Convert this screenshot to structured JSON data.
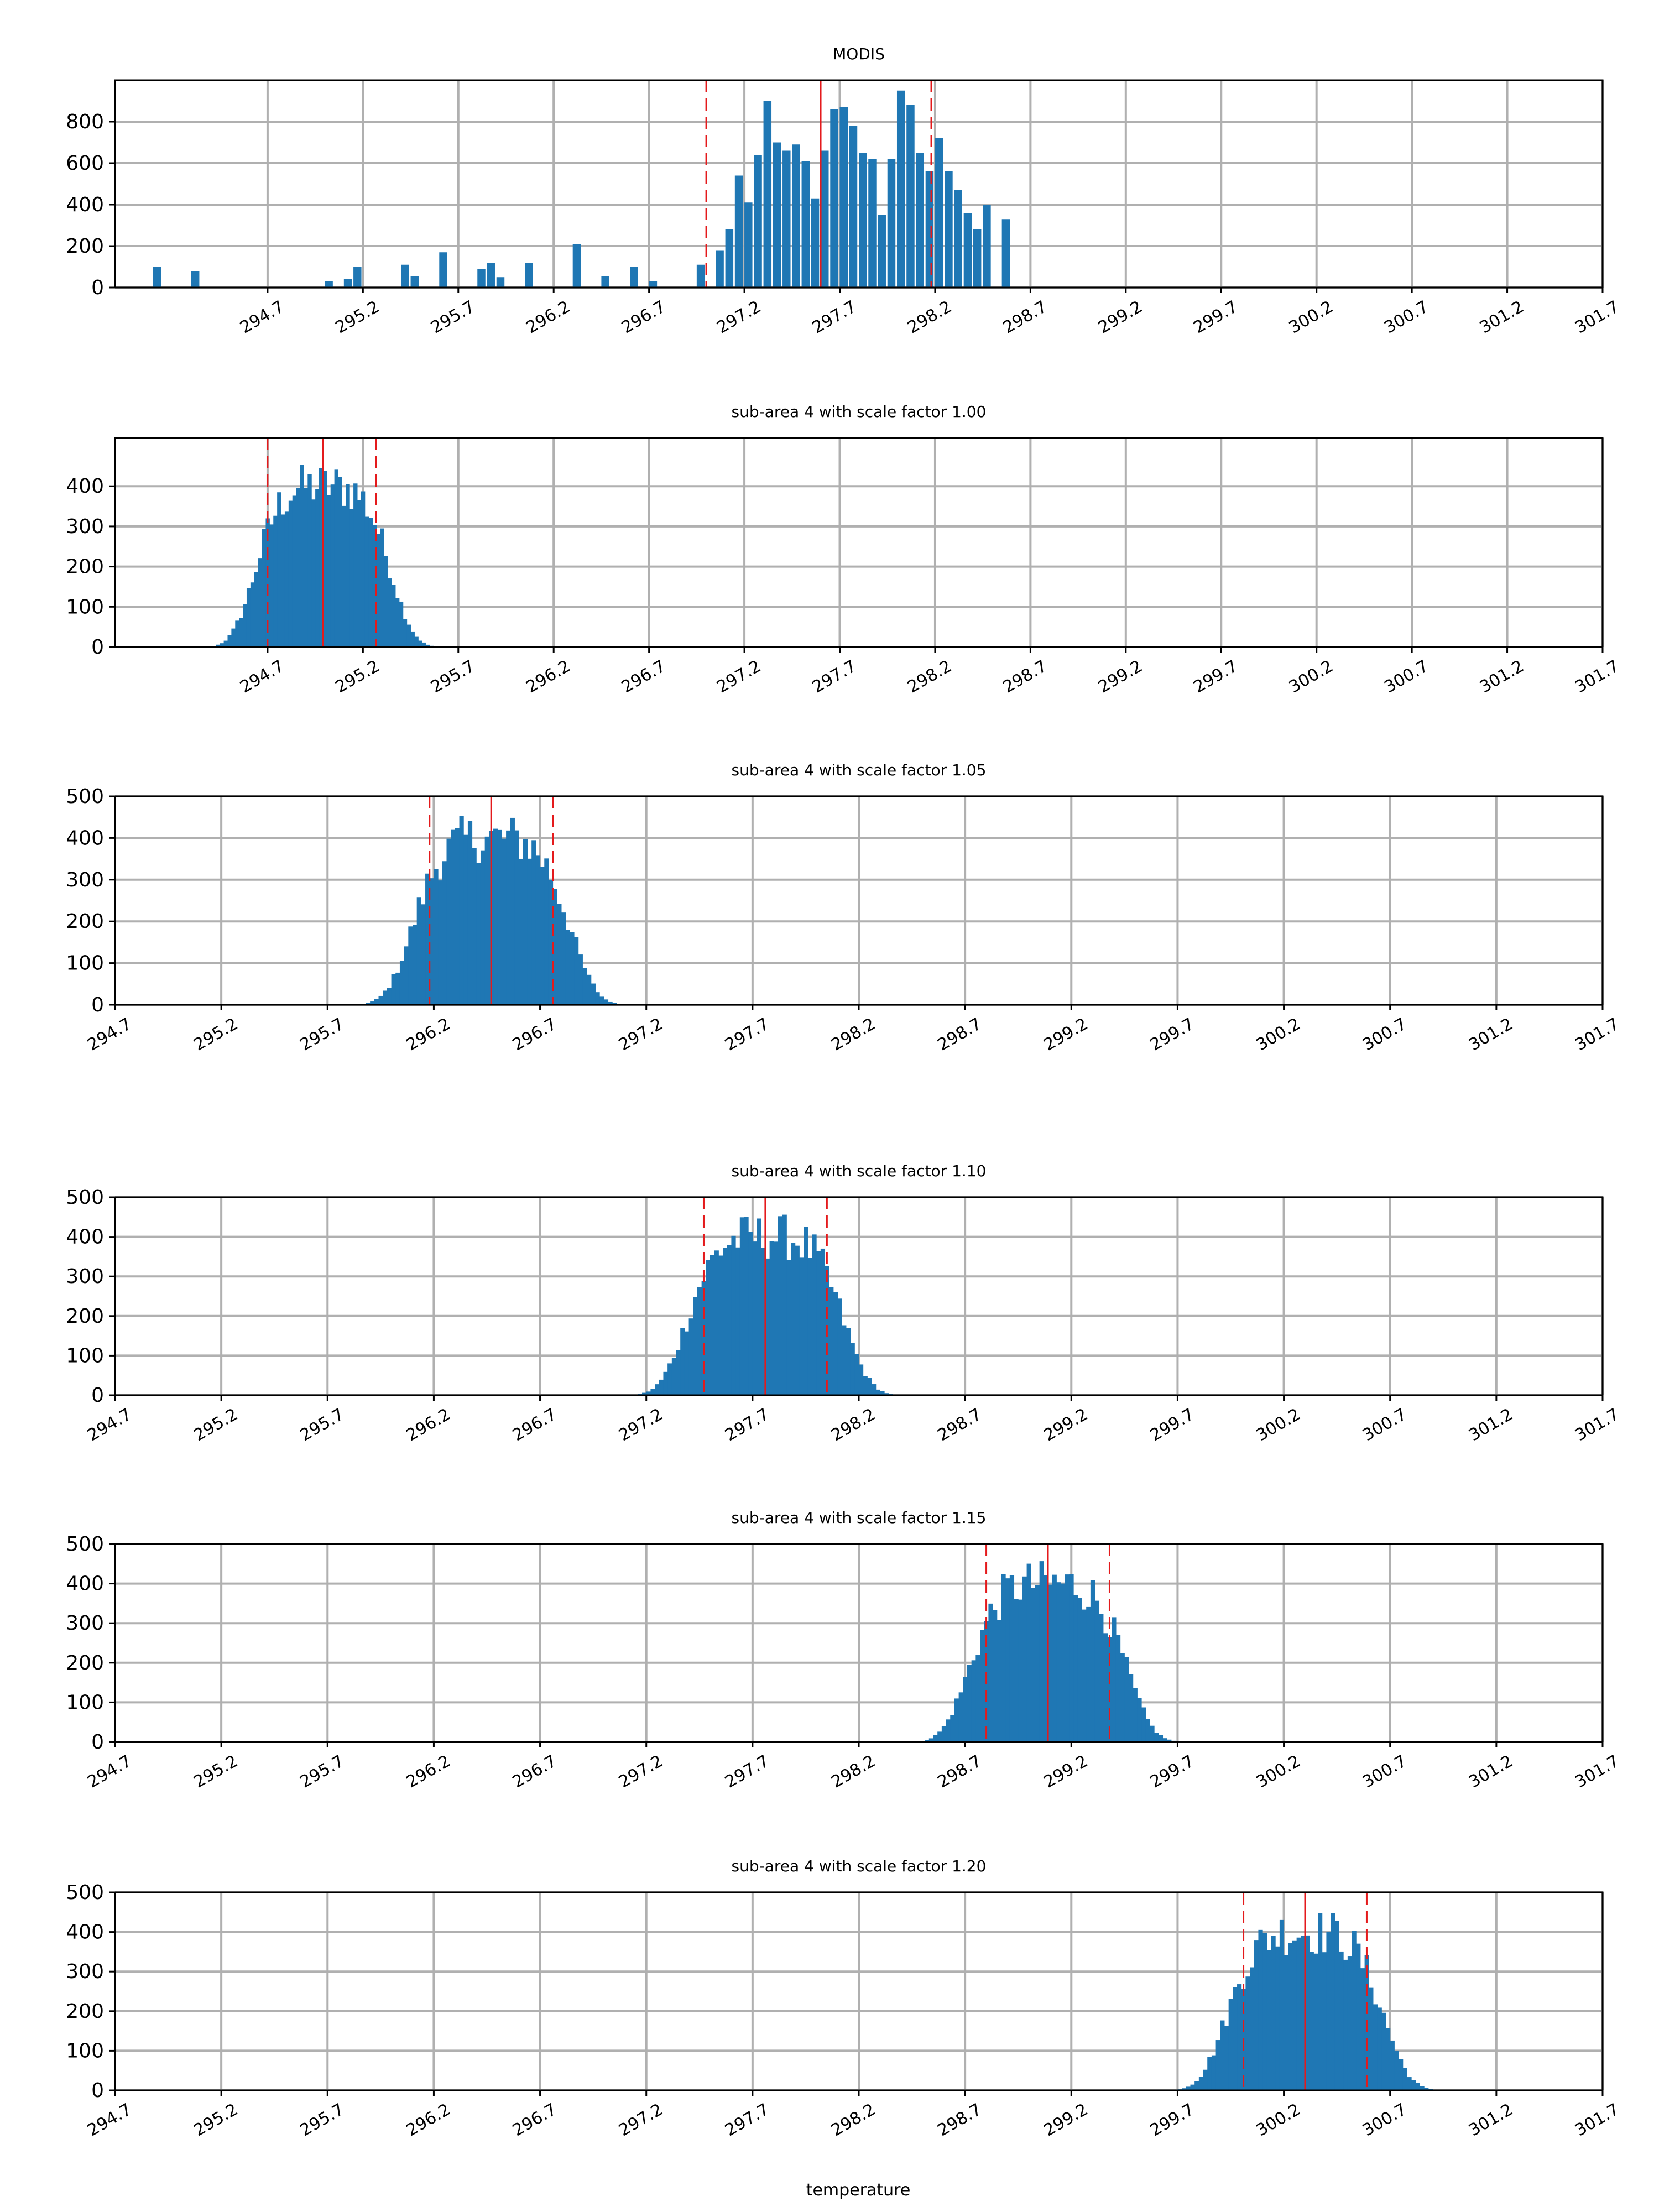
{
  "figure": {
    "xlabel": "temperature"
  },
  "chart_data": [
    {
      "type": "histogram",
      "title": "MODIS",
      "xlim": [
        293.9,
        301.7
      ],
      "ylim": [
        0,
        1000
      ],
      "yticks": [
        0,
        200,
        400,
        600,
        800
      ],
      "xticks": [
        294.7,
        295.2,
        295.7,
        296.2,
        296.7,
        297.2,
        297.7,
        298.2,
        298.7,
        299.2,
        299.7,
        300.2,
        300.7,
        301.2,
        301.7
      ],
      "xtick_labels": [
        "294.7",
        "295.2",
        "295.7",
        "296.2",
        "296.7",
        "297.2",
        "297.7",
        "298.2",
        "298.7",
        "299.2",
        "299.7",
        "300.2",
        "300.7",
        "301.2",
        "301.7"
      ],
      "bin_width": 0.042,
      "bins": [
        [
          294.1,
          100
        ],
        [
          294.3,
          80
        ],
        [
          295.0,
          30
        ],
        [
          295.1,
          40
        ],
        [
          295.15,
          100
        ],
        [
          295.4,
          110
        ],
        [
          295.45,
          55
        ],
        [
          295.6,
          170
        ],
        [
          295.8,
          90
        ],
        [
          295.85,
          120
        ],
        [
          295.9,
          50
        ],
        [
          296.05,
          120
        ],
        [
          296.3,
          210
        ],
        [
          296.45,
          55
        ],
        [
          296.6,
          100
        ],
        [
          296.7,
          30
        ],
        [
          296.95,
          110
        ],
        [
          297.05,
          180
        ],
        [
          297.1,
          280
        ],
        [
          297.15,
          540
        ],
        [
          297.2,
          410
        ],
        [
          297.25,
          640
        ],
        [
          297.3,
          900
        ],
        [
          297.35,
          700
        ],
        [
          297.4,
          660
        ],
        [
          297.45,
          690
        ],
        [
          297.5,
          610
        ],
        [
          297.55,
          430
        ],
        [
          297.6,
          660
        ],
        [
          297.65,
          860
        ],
        [
          297.7,
          870
        ],
        [
          297.75,
          780
        ],
        [
          297.8,
          650
        ],
        [
          297.85,
          620
        ],
        [
          297.9,
          350
        ],
        [
          297.95,
          620
        ],
        [
          298.0,
          950
        ],
        [
          298.05,
          880
        ],
        [
          298.1,
          650
        ],
        [
          298.15,
          560
        ],
        [
          298.2,
          720
        ],
        [
          298.25,
          560
        ],
        [
          298.3,
          470
        ],
        [
          298.35,
          360
        ],
        [
          298.4,
          280
        ],
        [
          298.45,
          400
        ],
        [
          298.55,
          330
        ]
      ],
      "mean": 297.6,
      "mean_minus_std": 297.0,
      "mean_plus_std": 298.18
    },
    {
      "type": "histogram",
      "title": "sub-area 4 with scale factor 1.00",
      "xlim": [
        293.9,
        301.7
      ],
      "ylim": [
        0,
        520
      ],
      "yticks": [
        0,
        100,
        200,
        300,
        400
      ],
      "xticks": [
        294.7,
        295.2,
        295.7,
        296.2,
        296.7,
        297.2,
        297.7,
        298.2,
        298.7,
        299.2,
        299.7,
        300.2,
        300.7,
        301.2,
        301.7
      ],
      "xtick_labels": [
        "294.7",
        "295.2",
        "295.7",
        "296.2",
        "296.7",
        "297.2",
        "297.7",
        "298.2",
        "298.7",
        "299.2",
        "299.7",
        "300.2",
        "300.7",
        "301.2",
        "301.7"
      ],
      "mean": 294.99,
      "std": 0.28,
      "peak": 400,
      "bin_width": 0.02,
      "range": [
        294.15,
        295.8
      ],
      "mean_minus_std": 294.7,
      "mean_plus_std": 295.27
    },
    {
      "type": "histogram",
      "title": "sub-area 4 with scale factor 1.05",
      "xlim": [
        294.7,
        301.7
      ],
      "ylim": [
        0,
        500
      ],
      "yticks": [
        0,
        100,
        200,
        300,
        400,
        500
      ],
      "xticks": [
        294.7,
        295.2,
        295.7,
        296.2,
        296.7,
        297.2,
        297.7,
        298.2,
        298.7,
        299.2,
        299.7,
        300.2,
        300.7,
        301.2,
        301.7
      ],
      "xtick_labels": [
        "294.7",
        "295.2",
        "295.7",
        "296.2",
        "296.7",
        "297.2",
        "297.7",
        "298.2",
        "298.7",
        "299.2",
        "299.7",
        "300.2",
        "300.7",
        "301.2",
        "301.7"
      ],
      "mean": 296.47,
      "std": 0.29,
      "peak": 400,
      "bin_width": 0.02,
      "range": [
        295.6,
        297.3
      ],
      "mean_minus_std": 296.18,
      "mean_plus_std": 296.76
    },
    {
      "type": "histogram",
      "title": "sub-area 4 with scale factor 1.10",
      "xlim": [
        294.7,
        301.7
      ],
      "ylim": [
        0,
        500
      ],
      "yticks": [
        0,
        100,
        200,
        300,
        400,
        500
      ],
      "xticks": [
        294.7,
        295.2,
        295.7,
        296.2,
        296.7,
        297.2,
        297.7,
        298.2,
        298.7,
        299.2,
        299.7,
        300.2,
        300.7,
        301.2,
        301.7
      ],
      "xtick_labels": [
        "294.7",
        "295.2",
        "295.7",
        "296.2",
        "296.7",
        "297.2",
        "297.7",
        "298.2",
        "298.7",
        "299.2",
        "299.7",
        "300.2",
        "300.7",
        "301.2",
        "301.7"
      ],
      "mean": 297.76,
      "std": 0.29,
      "peak": 400,
      "bin_width": 0.02,
      "range": [
        296.9,
        298.7
      ],
      "mean_minus_std": 297.47,
      "mean_plus_std": 298.05
    },
    {
      "type": "histogram",
      "title": "sub-area 4 with scale factor 1.15",
      "xlim": [
        294.7,
        301.7
      ],
      "ylim": [
        0,
        500
      ],
      "yticks": [
        0,
        100,
        200,
        300,
        400,
        500
      ],
      "xticks": [
        294.7,
        295.2,
        295.7,
        296.2,
        296.7,
        297.2,
        297.7,
        298.2,
        298.7,
        299.2,
        299.7,
        300.2,
        300.7,
        301.2,
        301.7
      ],
      "xtick_labels": [
        "294.7",
        "295.2",
        "295.7",
        "296.2",
        "296.7",
        "297.2",
        "297.7",
        "298.2",
        "298.7",
        "299.2",
        "299.7",
        "300.2",
        "300.7",
        "301.2",
        "301.7"
      ],
      "mean": 299.09,
      "std": 0.29,
      "peak": 400,
      "bin_width": 0.02,
      "range": [
        298.25,
        300.0
      ],
      "mean_minus_std": 298.8,
      "mean_plus_std": 299.38
    },
    {
      "type": "histogram",
      "title": "sub-area 4 with scale factor 1.20",
      "xlim": [
        294.7,
        301.7
      ],
      "ylim": [
        0,
        500
      ],
      "yticks": [
        0,
        100,
        200,
        300,
        400,
        500
      ],
      "xticks": [
        294.7,
        295.2,
        295.7,
        296.2,
        296.7,
        297.2,
        297.7,
        298.2,
        298.7,
        299.2,
        299.7,
        300.2,
        300.7,
        301.2,
        301.7
      ],
      "xtick_labels": [
        "294.7",
        "295.2",
        "295.7",
        "296.2",
        "296.7",
        "297.2",
        "297.7",
        "298.2",
        "298.7",
        "299.2",
        "299.7",
        "300.2",
        "300.7",
        "301.2",
        "301.7"
      ],
      "mean": 300.3,
      "std": 0.29,
      "peak": 400,
      "bin_width": 0.02,
      "range": [
        299.4,
        301.2
      ],
      "mean_minus_std": 300.01,
      "mean_plus_std": 300.59
    }
  ],
  "colors": {
    "bar": "#1f77b4",
    "grid": "#b0b0b0",
    "mean_line": "#e41a1c",
    "axis": "#000000"
  }
}
